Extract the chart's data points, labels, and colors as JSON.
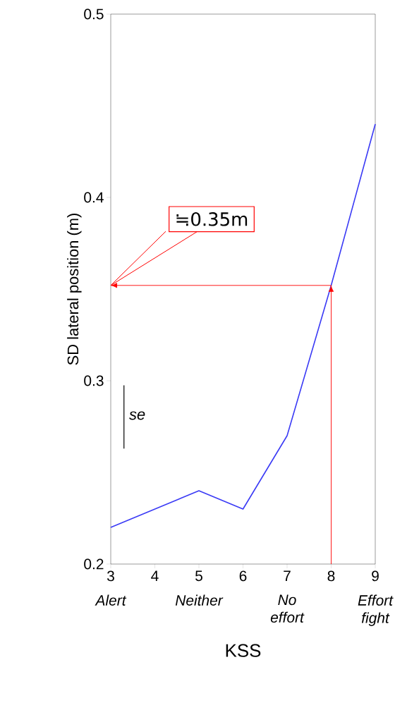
{
  "chart_data": {
    "type": "line",
    "xlabel": "KSS",
    "ylabel": "SD lateral position (m)",
    "x": [
      3,
      5,
      6,
      7,
      8,
      9
    ],
    "series": [
      {
        "color": "#3a3af5",
        "values": [
          0.22,
          0.24,
          0.23,
          0.27,
          0.352,
          0.44
        ]
      }
    ],
    "xlim": [
      3,
      9
    ],
    "xticks": [
      3,
      4,
      5,
      6,
      7,
      8,
      9
    ],
    "ylim": [
      0.2,
      0.5
    ],
    "yticks": [
      0.2,
      0.3,
      0.4,
      0.5
    ],
    "grid": false,
    "marker": "none",
    "line_style": "solid",
    "ref_lines": [
      {
        "axis": "x",
        "value": 8,
        "color": "#ff0000"
      },
      {
        "axis": "y",
        "value": 0.352,
        "color": "#ff0000"
      }
    ],
    "annotations": [
      "≒0.35m",
      "se",
      "Alert",
      "Neither",
      "No effort",
      "Effort fight"
    ]
  }
}
